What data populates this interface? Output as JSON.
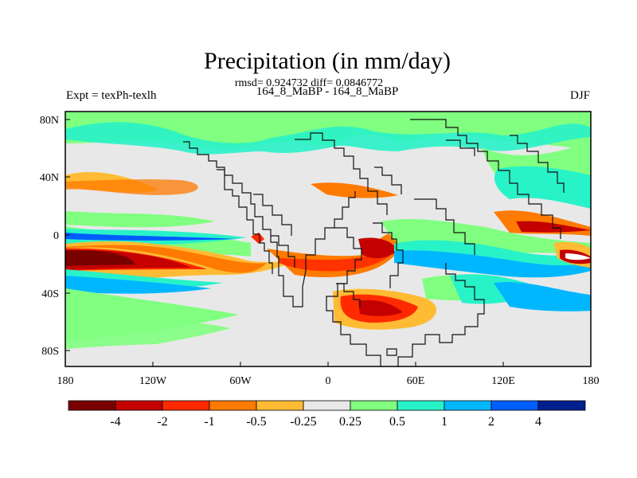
{
  "header": {
    "title": "Precipitation (in mm/day)",
    "stats": "rmsd= 0.924732 diff= 0.0846772",
    "experiment": "Expt = texPh-texlh",
    "comparison": "164_8_MaBP - 164_8_MaBP",
    "season": "DJF"
  },
  "axes": {
    "latitude_labels": [
      "80N",
      "40N",
      "0",
      "40S",
      "80S"
    ],
    "longitude_labels": [
      "180",
      "120W",
      "60W",
      "0",
      "60E",
      "120E",
      "180"
    ]
  },
  "legend": {
    "labels": [
      "-4",
      "-2",
      "-1",
      "-0.5",
      "-0.25",
      "0.25",
      "0.5",
      "1",
      "2",
      "4"
    ],
    "colors": [
      "#7a0000",
      "#c40000",
      "#ff2a00",
      "#ff7a00",
      "#ffbb33",
      "#e8e8e8",
      "#80ff80",
      "#28f2c8",
      "#00b7ff",
      "#005dff",
      "#001f8f"
    ]
  },
  "colors": {
    "land_outline": "#111111",
    "background_field": "#e8e8e8"
  }
}
